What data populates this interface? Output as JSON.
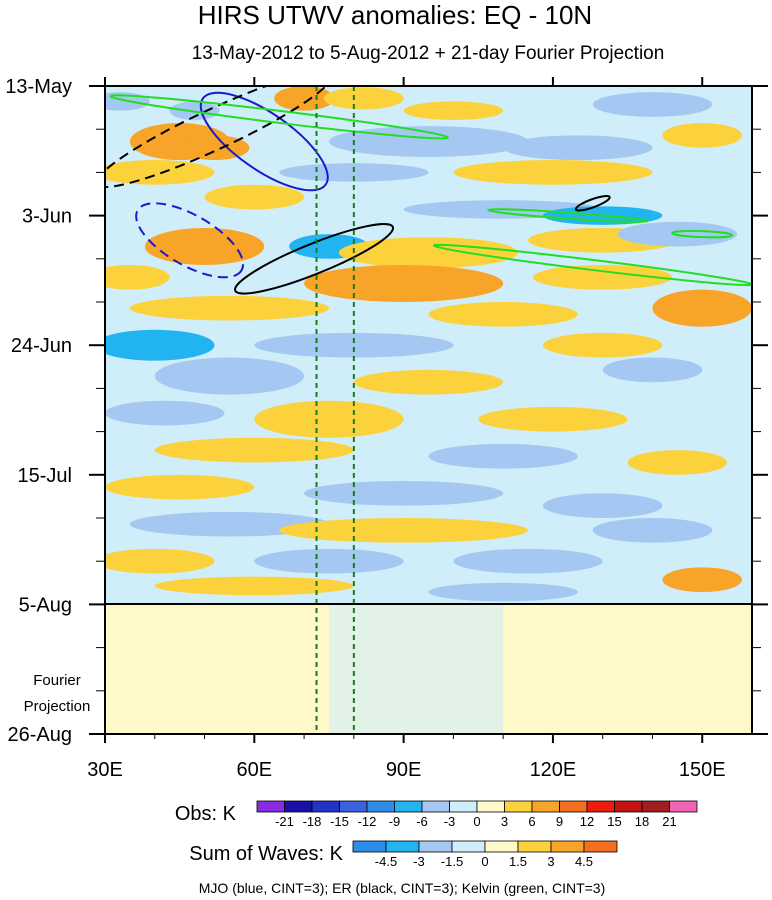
{
  "chart_data": {
    "type": "heatmap",
    "title": "HIRS UTWV anomalies: EQ - 10N",
    "subtitle": "13-May-2012 to 5-Aug-2012 + 21-day Fourier Projection",
    "x_axis": {
      "range": [
        30,
        160
      ],
      "ticks": [
        {
          "value": 30,
          "label": "30E"
        },
        {
          "value": 60,
          "label": "60E"
        },
        {
          "value": 90,
          "label": "90E"
        },
        {
          "value": 120,
          "label": "120E"
        },
        {
          "value": 150,
          "label": "150E"
        }
      ]
    },
    "y_axis": {
      "range": [
        "13-May",
        "26-Aug"
      ],
      "ticks": [
        {
          "label": "13-May",
          "day": 0
        },
        {
          "label": "3-Jun",
          "day": 21
        },
        {
          "label": "24-Jun",
          "day": 42
        },
        {
          "label": "15-Jul",
          "day": 63
        },
        {
          "label": "5-Aug",
          "day": 84
        },
        {
          "label": "26-Aug",
          "day": 105
        }
      ],
      "projection_label_line1": "Fourier",
      "projection_label_line2": "Projection",
      "observation_end_day": 84
    },
    "reference_lines_lon": [
      72.5,
      80
    ],
    "colorbar_obs": {
      "label": "Obs: K",
      "levels": [
        "-21",
        "-18",
        "-15",
        "-12",
        "-9",
        "-6",
        "-3",
        "0",
        "3",
        "6",
        "9",
        "12",
        "15",
        "18",
        "21"
      ],
      "colors": [
        "#8a2be2",
        "#1a0fa8",
        "#2432c8",
        "#3a62e0",
        "#2c8ee8",
        "#22b4f0",
        "#a4c8f2",
        "#cfeefa",
        "#fff8c8",
        "#fcd23c",
        "#f8a428",
        "#f47020",
        "#ee1c0c",
        "#c41410",
        "#a01e20",
        "#f064b4"
      ]
    },
    "colorbar_waves": {
      "label": "Sum of Waves: K",
      "levels": [
        "-4.5",
        "-3",
        "-1.5",
        "0",
        "1.5",
        "3",
        "4.5"
      ],
      "colors": [
        "#2c8ee8",
        "#22b4f0",
        "#a4c8f2",
        "#cfeefa",
        "#fff8c8",
        "#fcd23c",
        "#f8a428",
        "#f47020"
      ]
    },
    "footer": "MJO (blue, CINT=3); ER (black, CINT=3); Kelvin (green, CINT=3)",
    "contours": {
      "mjo_color": "#1a1acc",
      "er_color": "#000000",
      "kelvin_color": "#22dd22"
    },
    "projection_fill": "#fff8c8"
  }
}
